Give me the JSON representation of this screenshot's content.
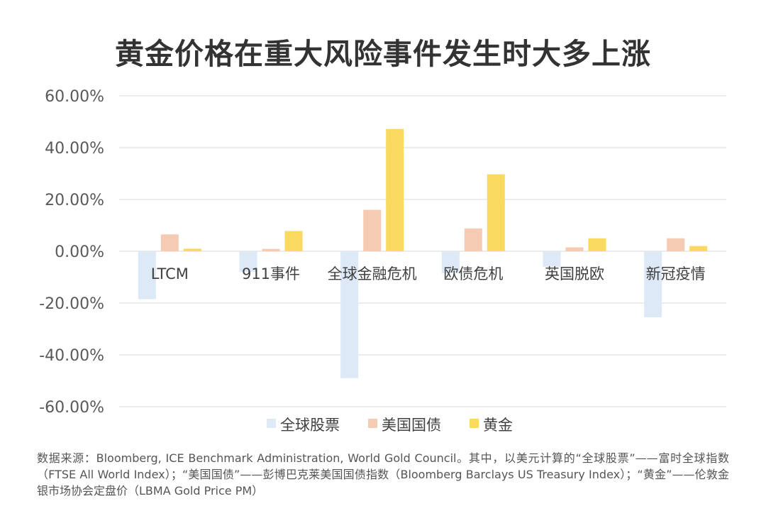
{
  "chart_data": {
    "type": "bar",
    "title": "黄金价格在重大风险事件发生时大多上涨",
    "categories": [
      "LTCM",
      "911事件",
      "全球金融危机",
      "欧债危机",
      "英国脱欧",
      "新冠疫情"
    ],
    "series": [
      {
        "name": "全球股票",
        "color": "#dde9f6",
        "values": [
          -0.185,
          -0.08,
          -0.49,
          -0.085,
          -0.06,
          -0.255
        ]
      },
      {
        "name": "美国国债",
        "color": "#f6cbb4",
        "values": [
          0.065,
          0.009,
          0.16,
          0.088,
          0.015,
          0.05
        ]
      },
      {
        "name": "黄金",
        "color": "#fad961",
        "values": [
          0.01,
          0.078,
          0.472,
          0.297,
          0.05,
          0.02
        ]
      }
    ],
    "ylim": [
      -0.6,
      0.6
    ],
    "yticks": [
      0.6,
      0.4,
      0.2,
      0.0,
      -0.2,
      -0.4,
      -0.6
    ],
    "ytick_labels": [
      "60.00%",
      "40.00%",
      "20.00%",
      "0.00%",
      "-20.00%",
      "-40.00%",
      "-60.00%"
    ],
    "grid": true,
    "legend_position": "bottom",
    "source_note": "数据来源：Bloomberg, ICE Benchmark Administration, World Gold Council。其中，以美元计算的“全球股票”——富时全球指数（FTSE All World Index）；“美国国债”——彭博巴克莱美国国债指数（Bloomberg Barclays US Treasury Index）；“黄金”——伦敦金银市场协会定盘价（LBMA Gold Price PM）"
  }
}
